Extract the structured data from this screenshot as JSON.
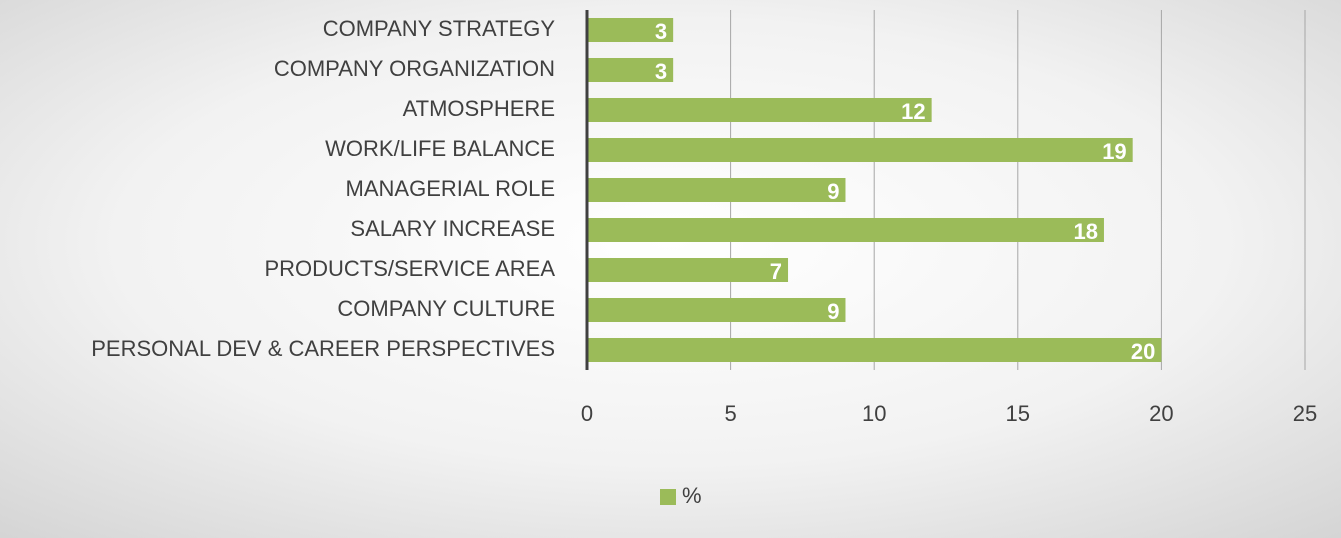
{
  "chart_data": {
    "type": "bar",
    "orientation": "horizontal",
    "categories": [
      "COMPANY STRATEGY",
      "COMPANY ORGANIZATION",
      "ATMOSPHERE",
      "WORK/LIFE BALANCE",
      "MANAGERIAL ROLE",
      "SALARY INCREASE",
      "PRODUCTS/SERVICE AREA",
      "COMPANY CULTURE",
      "PERSONAL DEV & CAREER PERSPECTIVES"
    ],
    "series": [
      {
        "name": "%",
        "color": "#9bbb59",
        "values": [
          3,
          3,
          12,
          19,
          9,
          18,
          7,
          9,
          20
        ]
      }
    ],
    "xlim": [
      0,
      25
    ],
    "xticks": [
      0,
      5,
      10,
      15,
      20,
      25
    ],
    "grid": true,
    "legend": "bottom"
  }
}
